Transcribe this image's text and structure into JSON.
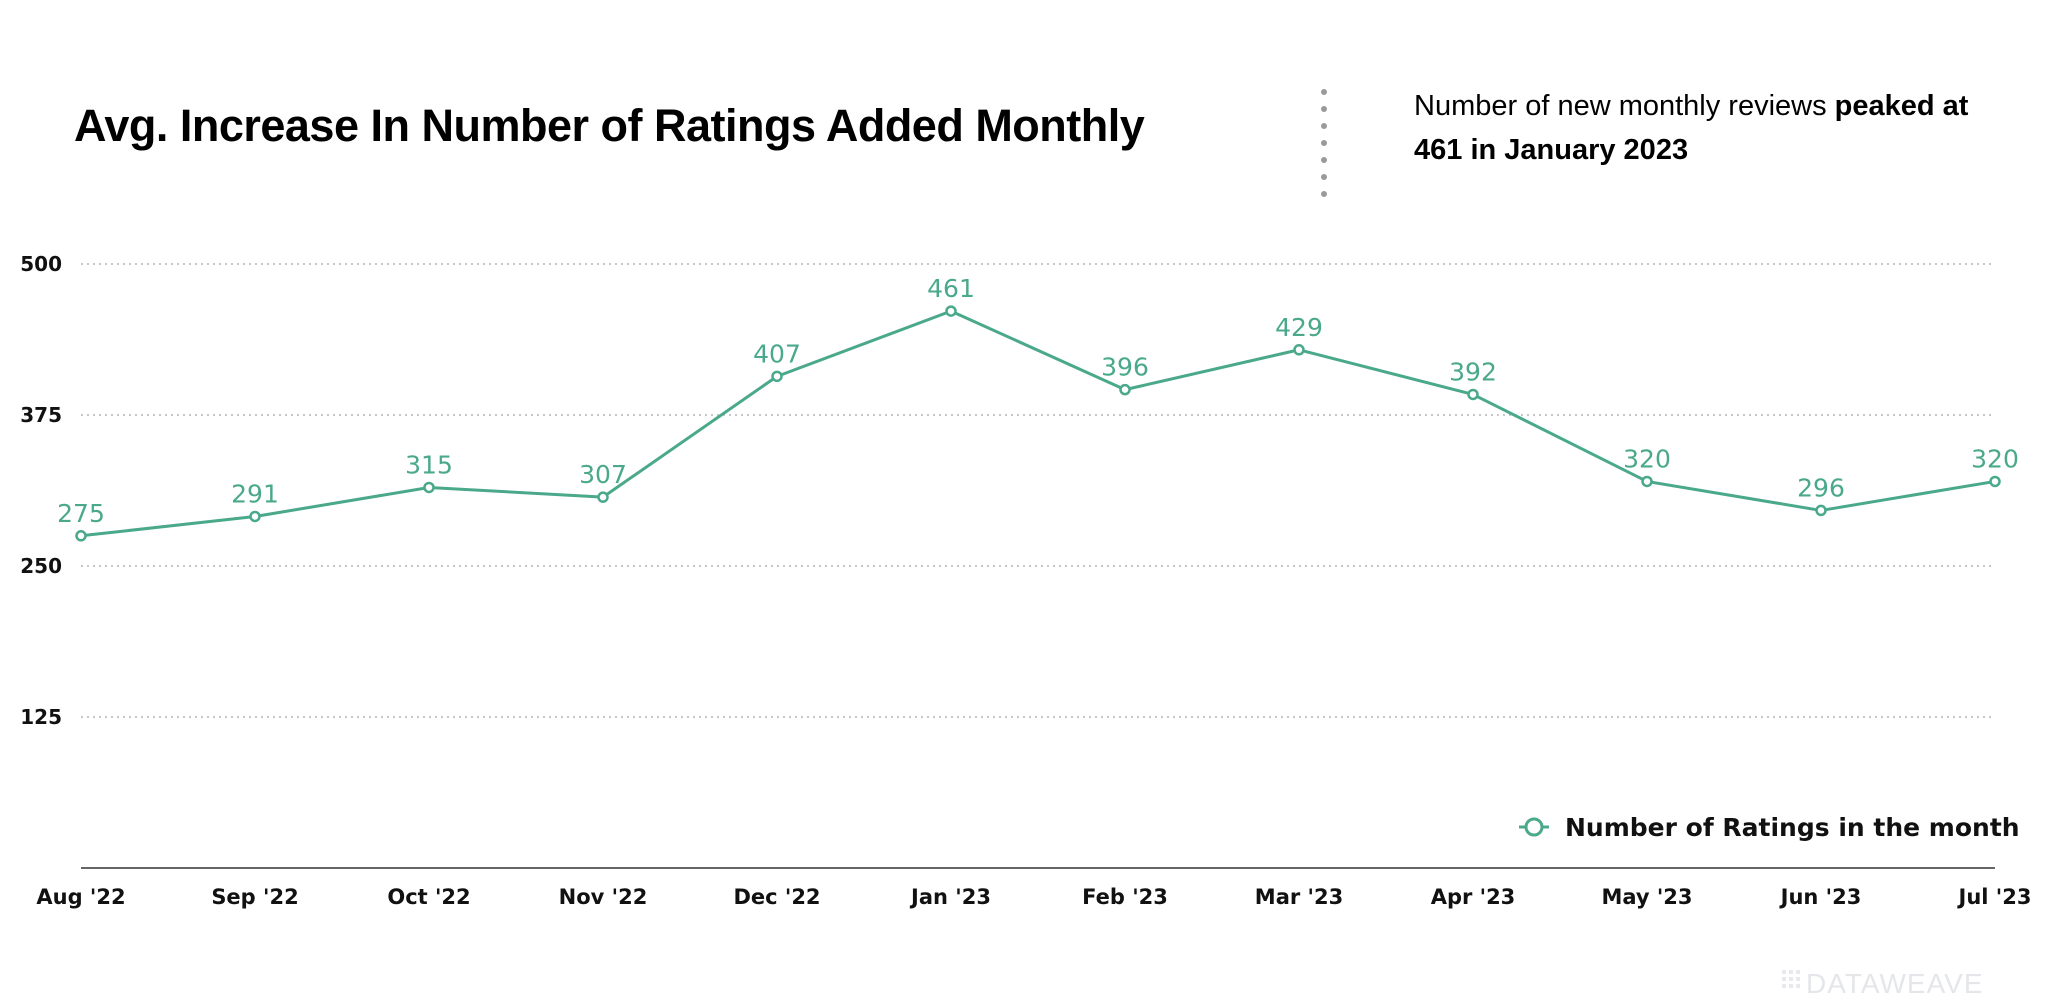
{
  "chart_data": {
    "type": "line",
    "title": "Avg. Increase In Number of Ratings Added Monthly",
    "annotation": {
      "text_plain": "Number of new monthly reviews ",
      "text_bold": "peaked at 461 in January 2023"
    },
    "categories": [
      "Aug '22",
      "Sep '22",
      "Oct '22",
      "Nov '22",
      "Dec '22",
      "Jan '23",
      "Feb '23",
      "Mar '23",
      "Apr '23",
      "May '23",
      "Jun '23",
      "Jul '23"
    ],
    "series": [
      {
        "name": "Number of Ratings in the month",
        "values": [
          275,
          291,
          315,
          307,
          407,
          461,
          396,
          429,
          392,
          320,
          296,
          320
        ]
      }
    ],
    "y_ticks": [
      125,
      250,
      375,
      500
    ],
    "ylim": [
      0,
      500
    ],
    "grid": true,
    "legend_position": "bottom-right",
    "series_color": "#4aa88b"
  },
  "watermark": "DATAWEAVE"
}
